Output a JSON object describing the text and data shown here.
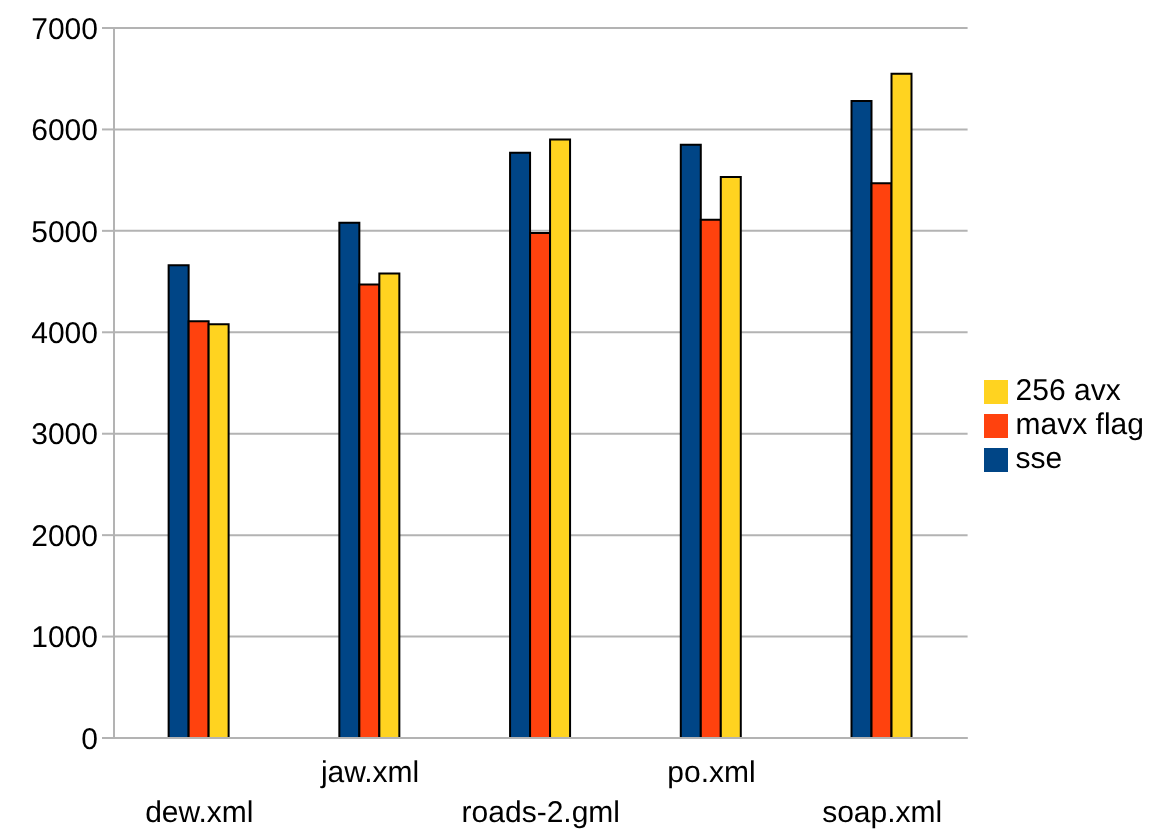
{
  "chart_data": {
    "type": "bar",
    "categories": [
      "dew.xml",
      "jaw.xml",
      "roads-2.gml",
      "po.xml",
      "soap.xml"
    ],
    "series": [
      {
        "name": "sse",
        "color": "#004586",
        "values": [
          4660,
          5080,
          5770,
          5850,
          6280
        ]
      },
      {
        "name": "mavx flag",
        "color": "#ff420e",
        "values": [
          4110,
          4470,
          4980,
          5110,
          5470
        ]
      },
      {
        "name": "256 avx",
        "color": "#ffd320",
        "values": [
          4080,
          4580,
          5900,
          5530,
          6550
        ]
      }
    ],
    "ylim": [
      0,
      7000
    ],
    "yticks": [
      0,
      1000,
      2000,
      3000,
      4000,
      5000,
      6000,
      7000
    ],
    "grid": "y",
    "legend": "right"
  }
}
